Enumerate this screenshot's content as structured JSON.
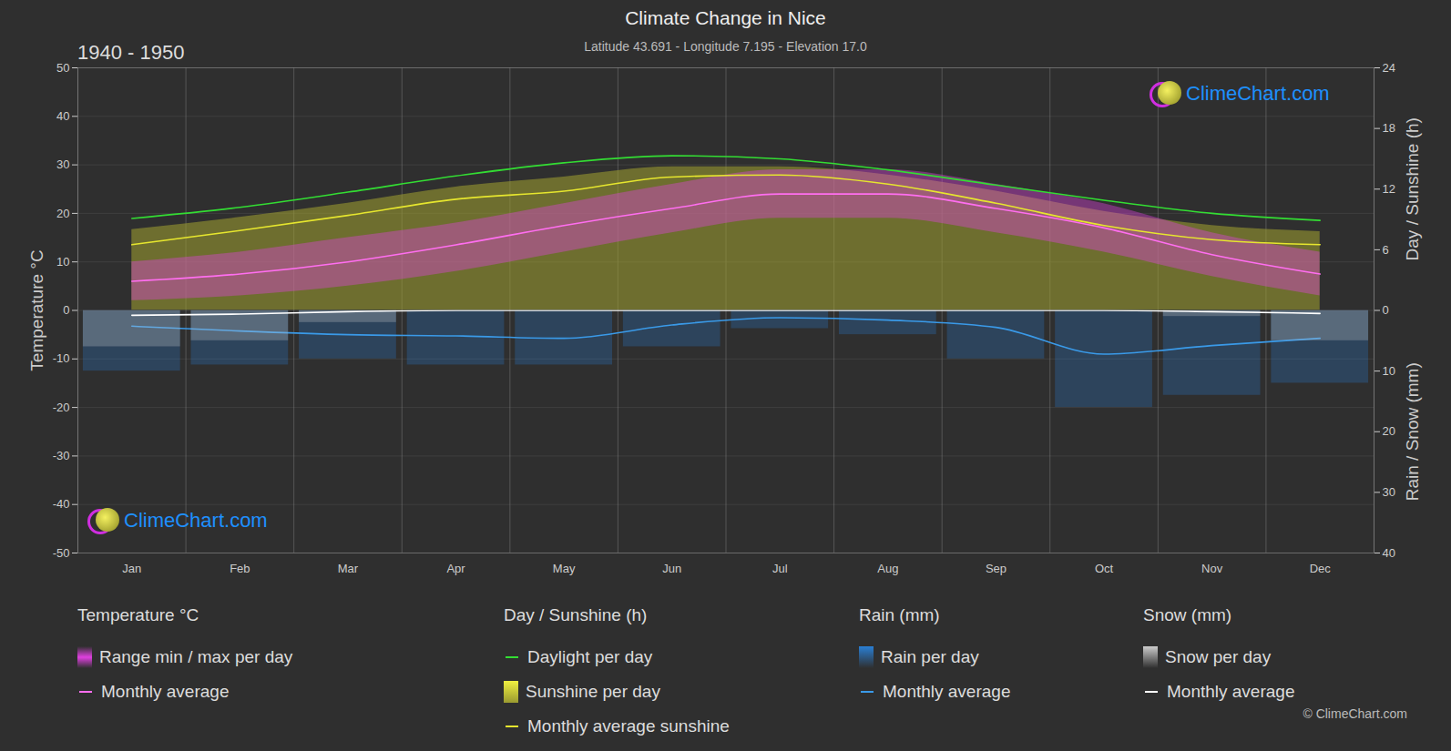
{
  "chart_data": {
    "type": "climate",
    "title": "Climate Change in Nice",
    "subtitle": "Latitude 43.691 - Longitude 7.195 - Elevation 17.0",
    "period": "1940 - 1950",
    "watermark": "ClimeChart.com",
    "copyright": "© ClimeChart.com",
    "categories": [
      "Jan",
      "Feb",
      "Mar",
      "Apr",
      "May",
      "Jun",
      "Jul",
      "Aug",
      "Sep",
      "Oct",
      "Nov",
      "Dec"
    ],
    "ylabel": "Temperature °C",
    "ylim": [
      -50,
      50
    ],
    "yticks": [
      -50,
      -40,
      -30,
      -20,
      -10,
      0,
      10,
      20,
      30,
      40,
      50
    ],
    "y2label": "Day / Sunshine (h)",
    "y2lim": [
      0,
      24
    ],
    "y2ticks": [
      0,
      6,
      12,
      18,
      24
    ],
    "y3label": "Rain / Snow (mm)",
    "y3lim": [
      0,
      40
    ],
    "y3ticks": [
      10,
      20,
      30,
      40
    ],
    "grid": true,
    "series": [
      {
        "name": "Range min / max per day",
        "group": "Temperature °C",
        "type": "range",
        "color": "#e040e0",
        "values": [
          [
            2,
            10
          ],
          [
            3,
            12
          ],
          [
            5,
            15
          ],
          [
            8,
            18
          ],
          [
            12,
            22
          ],
          [
            16,
            26
          ],
          [
            19,
            29
          ],
          [
            19,
            29
          ],
          [
            16,
            26
          ],
          [
            12,
            22
          ],
          [
            7,
            16
          ],
          [
            3,
            12
          ]
        ]
      },
      {
        "name": "Monthly average",
        "group": "Temperature °C",
        "type": "line",
        "color": "#ff6ef0",
        "values": [
          6,
          7.5,
          10,
          13.5,
          17.5,
          21,
          24,
          24,
          21,
          17,
          11.5,
          7.5
        ]
      },
      {
        "name": "Daylight per day",
        "group": "Day / Sunshine (h)",
        "type": "line",
        "color": "#33dd33",
        "axis": "y2",
        "values": [
          9.1,
          10.2,
          11.7,
          13.3,
          14.6,
          15.3,
          15.0,
          13.9,
          12.4,
          10.9,
          9.6,
          8.9
        ]
      },
      {
        "name": "Sunshine per day",
        "group": "Day / Sunshine (h)",
        "type": "area",
        "color": "#9a9a30",
        "axis": "y2",
        "values": [
          8.0,
          9.2,
          10.6,
          12.2,
          13.2,
          14.2,
          14.2,
          13.4,
          11.8,
          9.8,
          8.4,
          7.8
        ]
      },
      {
        "name": "Monthly average sunshine",
        "group": "Day / Sunshine (h)",
        "type": "line",
        "color": "#e6e62e",
        "axis": "y2",
        "values": [
          6.5,
          7.9,
          9.4,
          11.0,
          11.8,
          13.2,
          13.4,
          12.5,
          10.6,
          8.4,
          7.0,
          6.5
        ]
      },
      {
        "name": "Rain per day",
        "group": "Rain (mm)",
        "type": "bar",
        "color": "#2a7fd4",
        "axis": "y3",
        "values": [
          10,
          9,
          8,
          9,
          9,
          6,
          3,
          4,
          8,
          16,
          14,
          12
        ]
      },
      {
        "name": "Monthly average",
        "group": "Rain (mm)",
        "type": "line",
        "color": "#3a9ae8",
        "axis": "y3",
        "values": [
          2.6,
          3.4,
          4.0,
          4.2,
          4.6,
          2.4,
          1.2,
          1.6,
          2.8,
          7.2,
          5.8,
          4.6
        ]
      },
      {
        "name": "Snow per day",
        "group": "Snow (mm)",
        "type": "bar",
        "color": "#cccccc",
        "axis": "y3",
        "values": [
          6,
          5,
          2,
          0,
          0,
          0,
          0,
          0,
          0,
          0,
          1,
          5
        ]
      },
      {
        "name": "Monthly average",
        "group": "Snow (mm)",
        "type": "line",
        "color": "#ffffff",
        "axis": "y3",
        "values": [
          0.8,
          0.6,
          0.2,
          0,
          0,
          0,
          0,
          0,
          0,
          0,
          0.2,
          0.5
        ]
      }
    ]
  }
}
